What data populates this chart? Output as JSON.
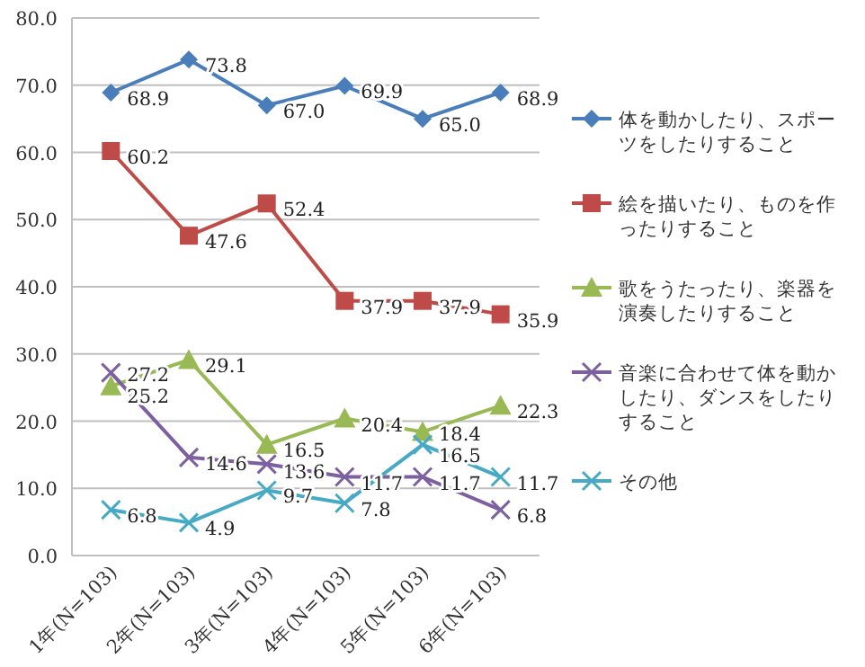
{
  "chart_data": {
    "type": "line",
    "categories": [
      "1年(N=103)",
      "2年(N=103)",
      "3年(N=103)",
      "4年(N=103)",
      "5年(N=103)",
      "6年(N=103)"
    ],
    "series": [
      {
        "name": "体を動かしたり、スポーツをしたりすること",
        "color": "#4a7ebb",
        "marker": "diamond",
        "values": [
          68.9,
          73.8,
          67.0,
          69.9,
          65.0,
          68.9
        ],
        "value_labels": [
          "68.9",
          "73.8",
          "67.0",
          "69.9",
          "65.0",
          "68.9"
        ]
      },
      {
        "name": "絵を描いたり、ものを作ったりすること",
        "color": "#be4b48",
        "marker": "square",
        "values": [
          60.2,
          47.6,
          52.4,
          37.9,
          37.9,
          35.9
        ],
        "value_labels": [
          "60.2",
          "47.6",
          "52.4",
          "37.9",
          "37.9",
          "35.9"
        ]
      },
      {
        "name": "歌をうたったり、楽器を演奏したりすること",
        "color": "#98b954",
        "marker": "triangle",
        "values": [
          25.2,
          29.1,
          16.5,
          20.4,
          18.4,
          22.3
        ],
        "value_labels": [
          "25.2",
          "29.1",
          "16.5",
          "20.4",
          "18.4",
          "22.3"
        ]
      },
      {
        "name": "音楽に合わせて体を動かしたり、ダンスをしたりすること",
        "color": "#7d60a0",
        "marker": "cross",
        "values": [
          27.2,
          14.6,
          13.6,
          11.7,
          11.7,
          6.8
        ],
        "value_labels": [
          "27.2",
          "14.6",
          "13.6",
          "11.7",
          "11.7",
          "6.8"
        ]
      },
      {
        "name": "その他",
        "color": "#46aac5",
        "marker": "cross",
        "values": [
          6.8,
          4.9,
          9.7,
          7.8,
          16.5,
          11.7
        ],
        "value_labels": [
          "6.8",
          "4.9",
          "9.7",
          "7.8",
          "16.5",
          "11.7"
        ]
      }
    ],
    "ylim": [
      0,
      80
    ],
    "yticks": [
      {
        "value": 0,
        "label": "0.0"
      },
      {
        "value": 10,
        "label": "10.0"
      },
      {
        "value": 20,
        "label": "20.0"
      },
      {
        "value": 30,
        "label": "30.0"
      },
      {
        "value": 40,
        "label": "40.0"
      },
      {
        "value": 50,
        "label": "50.0"
      },
      {
        "value": 60,
        "label": "60.0"
      },
      {
        "value": 70,
        "label": "70.0"
      },
      {
        "value": 80,
        "label": "80.0"
      }
    ],
    "grid": "y",
    "legend": "right",
    "line_style": "solid"
  }
}
